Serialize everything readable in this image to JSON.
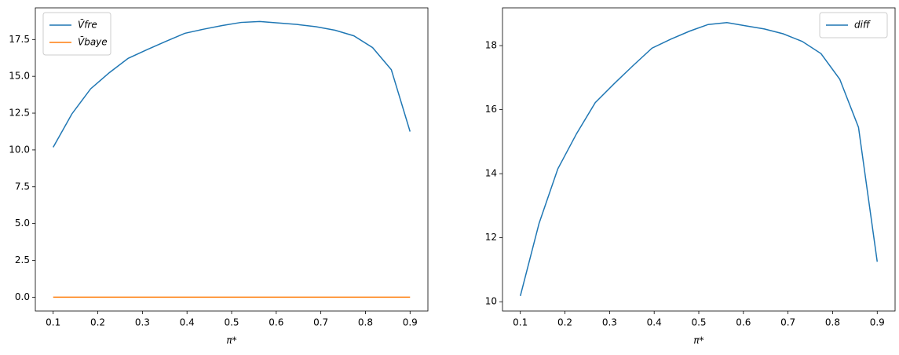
{
  "chart_data": [
    {
      "type": "line",
      "xlabel": "π*",
      "x": [
        0.1,
        0.142,
        0.184,
        0.226,
        0.268,
        0.311,
        0.353,
        0.395,
        0.437,
        0.479,
        0.521,
        0.563,
        0.605,
        0.647,
        0.689,
        0.732,
        0.774,
        0.816,
        0.858,
        0.9
      ],
      "series": [
        {
          "name": "V̄fre",
          "color": "#1f77b4",
          "values": [
            10.18,
            12.45,
            14.15,
            15.25,
            16.22,
            16.82,
            17.38,
            17.92,
            18.2,
            18.45,
            18.66,
            18.72,
            18.62,
            18.52,
            18.37,
            18.13,
            17.75,
            16.95,
            15.45,
            11.25
          ]
        },
        {
          "name": "V̄baye",
          "color": "#ff7f0e",
          "values": [
            0,
            0,
            0,
            0,
            0,
            0,
            0,
            0,
            0,
            0,
            0,
            0,
            0,
            0,
            0,
            0,
            0,
            0,
            0,
            0
          ]
        }
      ],
      "xlim": [
        0.06,
        0.94
      ],
      "xticks": [
        0.1,
        0.2,
        0.3,
        0.4,
        0.5,
        0.6,
        0.7,
        0.8,
        0.9
      ],
      "ylim": [
        -0.94,
        19.65
      ],
      "yticks": [
        {
          "value": 0,
          "label": "0.0"
        },
        {
          "value": 2.5,
          "label": "2.5"
        },
        {
          "value": 5,
          "label": "5.0"
        },
        {
          "value": 7.5,
          "label": "7.5"
        },
        {
          "value": 10,
          "label": "10.0"
        },
        {
          "value": 12.5,
          "label": "12.5"
        },
        {
          "value": 15,
          "label": "15.0"
        },
        {
          "value": 17.5,
          "label": "17.5"
        }
      ],
      "legend": "upper-left"
    },
    {
      "type": "line",
      "xlabel": "π*",
      "x": [
        0.1,
        0.142,
        0.184,
        0.226,
        0.268,
        0.311,
        0.353,
        0.395,
        0.437,
        0.479,
        0.521,
        0.563,
        0.605,
        0.647,
        0.689,
        0.732,
        0.774,
        0.816,
        0.858,
        0.9
      ],
      "series": [
        {
          "name": "diff",
          "color": "#1f77b4",
          "values": [
            10.18,
            12.45,
            14.15,
            15.25,
            16.22,
            16.82,
            17.38,
            17.92,
            18.2,
            18.45,
            18.66,
            18.72,
            18.62,
            18.52,
            18.37,
            18.13,
            17.75,
            16.95,
            15.45,
            11.25
          ]
        }
      ],
      "xlim": [
        0.06,
        0.94
      ],
      "xticks": [
        0.1,
        0.2,
        0.3,
        0.4,
        0.5,
        0.6,
        0.7,
        0.8,
        0.9
      ],
      "ylim": [
        9.71,
        19.18
      ],
      "yticks": [
        10,
        12,
        14,
        16,
        18
      ],
      "legend": "upper-right"
    }
  ]
}
